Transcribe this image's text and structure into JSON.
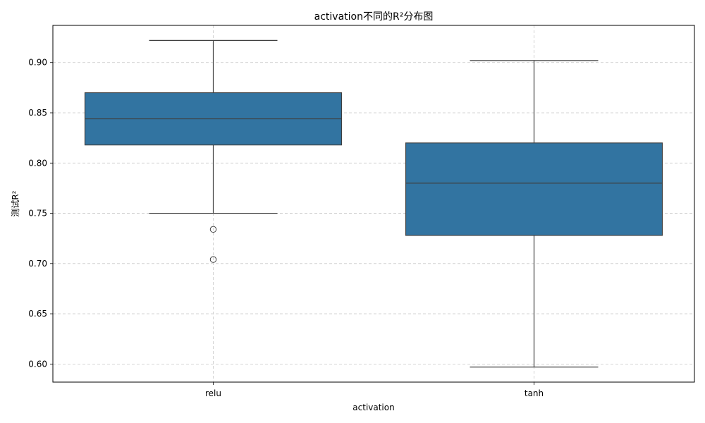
{
  "chart_data": {
    "type": "box",
    "title": "activation不同的R²分布图",
    "xlabel": "activation",
    "ylabel": "测试R²",
    "ylim": [
      0.582,
      0.937
    ],
    "yticks": [
      0.6,
      0.65,
      0.7,
      0.75,
      0.8,
      0.85,
      0.9
    ],
    "ytick_labels": [
      "0.60",
      "0.65",
      "0.70",
      "0.75",
      "0.80",
      "0.85",
      "0.90"
    ],
    "categories": [
      "relu",
      "tanh"
    ],
    "grid": true,
    "boxes": [
      {
        "category": "relu",
        "whisker_low": 0.75,
        "q1": 0.818,
        "median": 0.844,
        "q3": 0.87,
        "whisker_high": 0.922,
        "outliers": [
          0.734,
          0.704
        ]
      },
      {
        "category": "tanh",
        "whisker_low": 0.597,
        "q1": 0.728,
        "median": 0.78,
        "q3": 0.82,
        "whisker_high": 0.902,
        "outliers": []
      }
    ],
    "colors": {
      "box_fill": "#3274a1",
      "line": "#3f3f3f",
      "grid": "#c8c8c8",
      "axis": "#000000"
    }
  }
}
